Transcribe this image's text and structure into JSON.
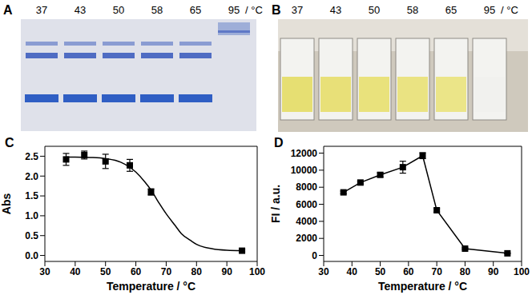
{
  "panels": [
    {
      "title": "A",
      "type": "gel",
      "lanes": [
        "37",
        "43",
        "50",
        "58",
        "65",
        "95"
      ],
      "unit": "/ °C"
    },
    {
      "title": "B",
      "type": "photo",
      "lanes": [
        "37",
        "43",
        "50",
        "58",
        "65",
        "95"
      ],
      "unit": "/ °C",
      "colors": [
        "#e6df72",
        "#e8e078",
        "#e9e27c",
        "#eae382",
        "#ebe588",
        "#f1f1ee"
      ]
    }
  ],
  "chart_data": [
    {
      "title": "C",
      "type": "scatter",
      "xlabel": "Temperature / °C",
      "ylabel": "Abs",
      "xlim": [
        30,
        100
      ],
      "xticks": [
        30,
        40,
        50,
        60,
        70,
        80,
        90,
        100
      ],
      "ylim": [
        -0.15,
        2.75
      ],
      "yticks": [
        {
          "value": 0,
          "label": "0.0"
        },
        0.5,
        {
          "value": 1,
          "label": "1.0"
        },
        1.5,
        {
          "value": 2,
          "label": "2.0"
        },
        2.5
      ],
      "series": [
        {
          "type": "scatter",
          "marker": "square",
          "color": "#000000",
          "x": [
            37,
            43,
            50,
            58,
            65,
            95
          ],
          "values": [
            2.42,
            2.53,
            2.37,
            2.27,
            1.6,
            0.12
          ],
          "error": [
            0.15,
            0.1,
            0.18,
            0.15,
            0.08,
            0.03
          ]
        },
        {
          "type": "line",
          "line_style": "solid",
          "color": "#000000",
          "x": [
            37,
            40,
            45,
            50,
            55,
            60,
            63,
            65,
            67,
            70,
            73,
            75,
            78,
            80,
            85,
            90,
            95
          ],
          "values": [
            2.48,
            2.48,
            2.47,
            2.44,
            2.35,
            2.1,
            1.85,
            1.65,
            1.4,
            1.05,
            0.75,
            0.55,
            0.38,
            0.28,
            0.17,
            0.13,
            0.12
          ]
        }
      ]
    },
    {
      "title": "D",
      "type": "line",
      "xlabel": "Temperature / °C",
      "ylabel": "FI / a.u.",
      "xlim": [
        30,
        100
      ],
      "xticks": [
        30,
        40,
        50,
        60,
        70,
        80,
        90,
        100
      ],
      "ylim": [
        -700,
        12800
      ],
      "yticks": [
        0,
        2000,
        4000,
        6000,
        8000,
        10000,
        12000
      ],
      "series": [
        {
          "marker": "square",
          "line_style": "solid",
          "color": "#000000",
          "x": [
            37,
            43,
            50,
            58,
            65,
            70,
            80,
            95
          ],
          "values": [
            7400,
            8550,
            9450,
            10350,
            11700,
            5300,
            800,
            250
          ],
          "error": [
            150,
            150,
            250,
            700,
            350,
            200,
            100,
            50
          ]
        }
      ]
    }
  ]
}
